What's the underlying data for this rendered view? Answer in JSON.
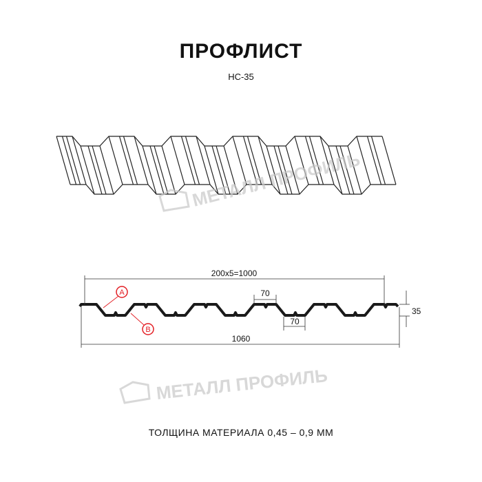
{
  "title": "ПРОФЛИСТ",
  "subtitle": "НС-35",
  "watermark": "МЕТАЛЛ ПРОФИЛЬ",
  "dimensions": {
    "pitch": "200x5=1000",
    "crest": "70",
    "trough": "70",
    "height": "35",
    "total": "1060"
  },
  "markers": {
    "a": "A",
    "b": "B"
  },
  "footer": "ТОЛЩИНА МАТЕРИАЛА 0,45 – 0,9 ММ",
  "colors": {
    "line": "#1a1a1a",
    "marker": "#e31e24",
    "watermark": "#c8c8c8"
  }
}
